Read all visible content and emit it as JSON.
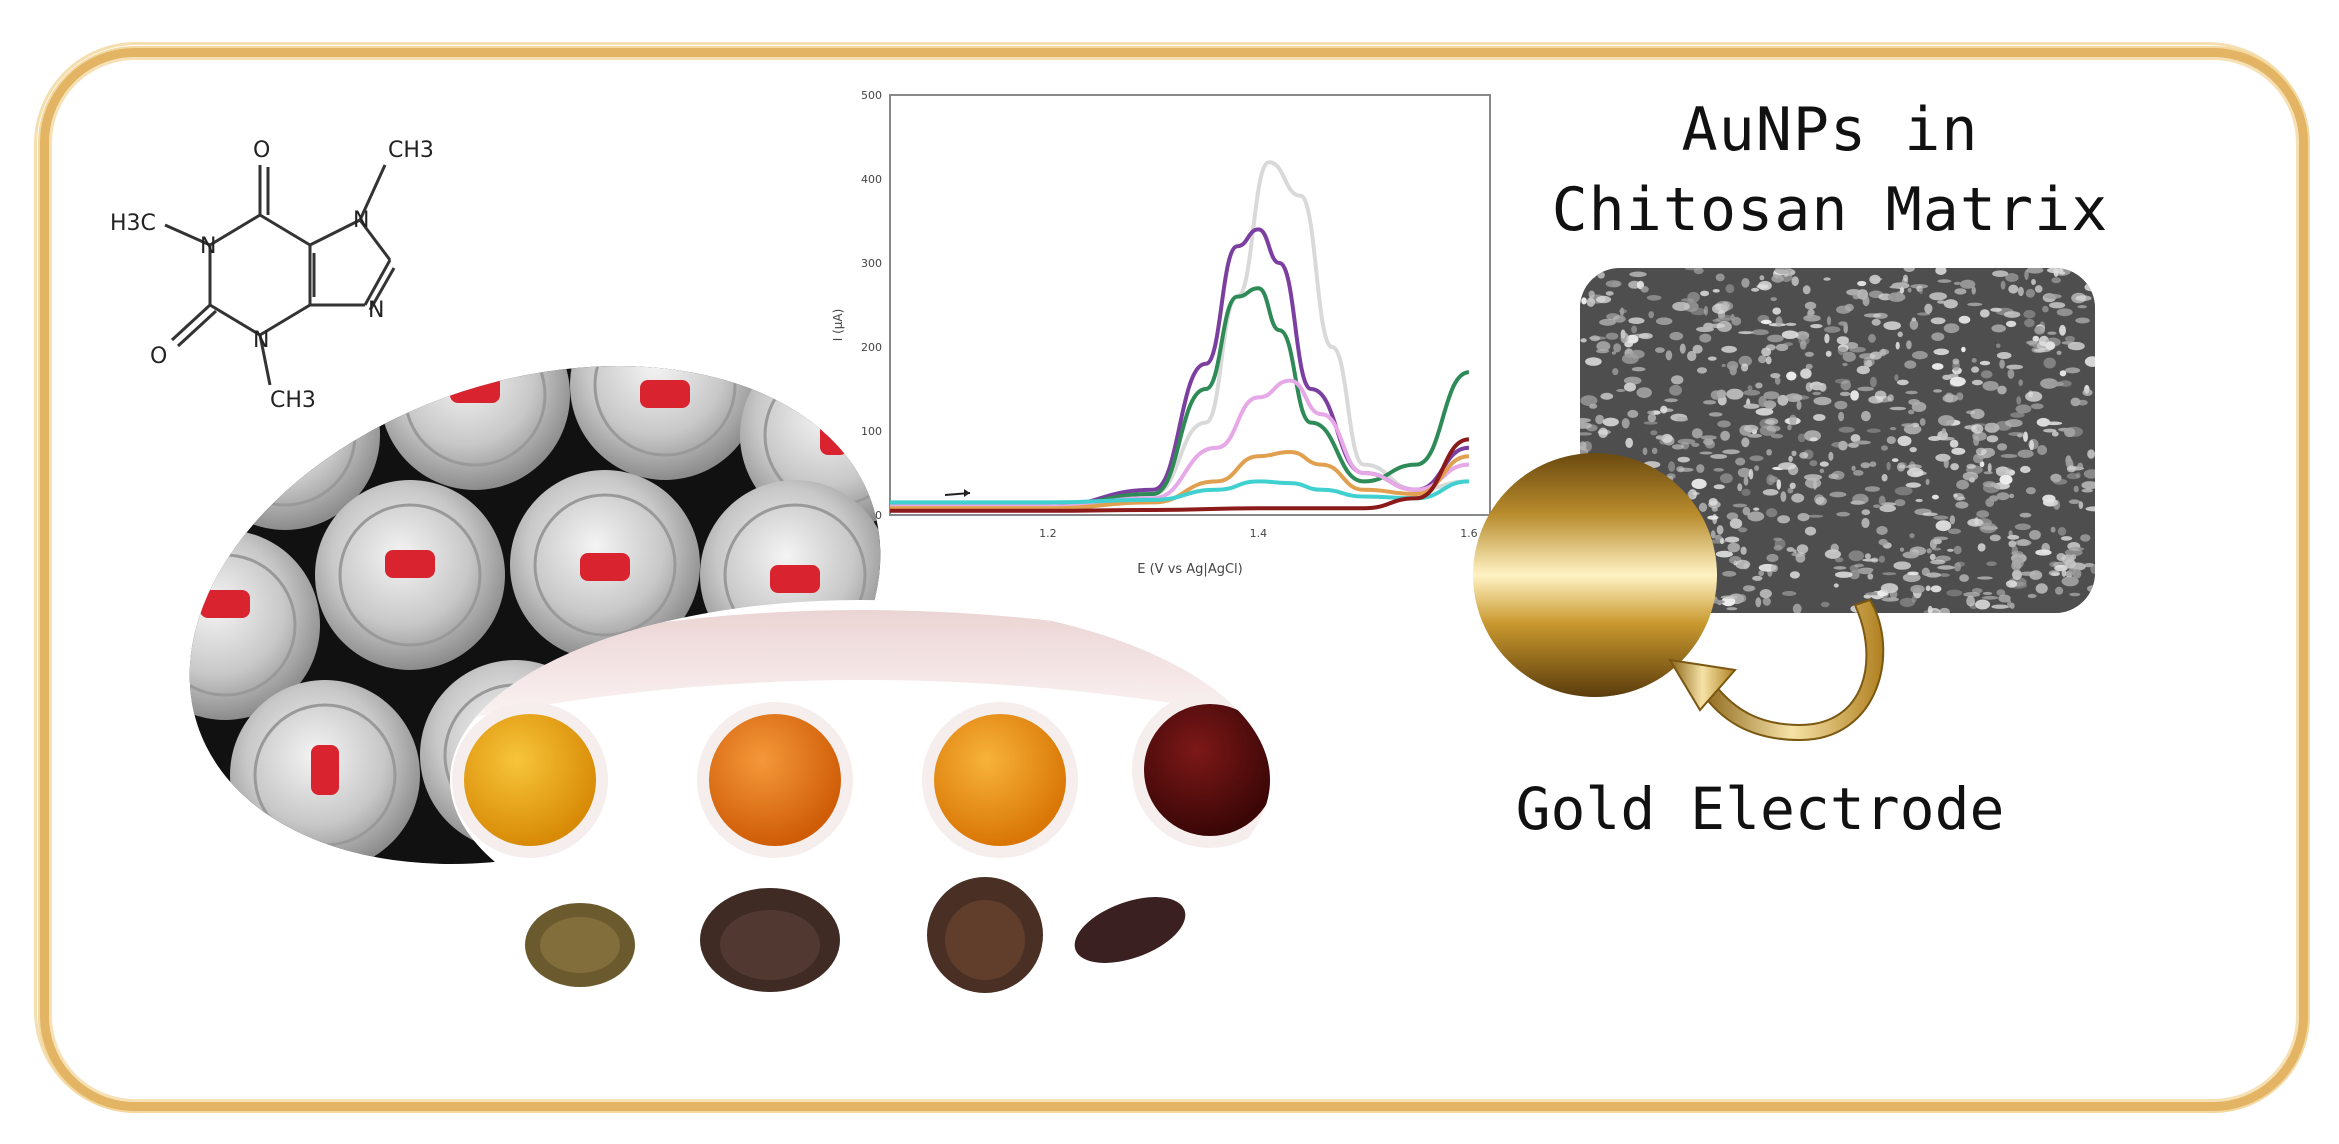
{
  "molecule": {
    "name": "caffeine",
    "atom_labels": {
      "ch3_top": "CH3",
      "h3c_left": "H3C",
      "ch3_bottom": "CH3",
      "o_top": "O",
      "o_bottom": "O",
      "n1": "N",
      "n3": "N",
      "n7": "N",
      "n9": "N"
    }
  },
  "title": {
    "line1": "AuNPs in",
    "line2": "Chitosan Matrix"
  },
  "caption": "Gold Electrode",
  "colors": {
    "frame": "#e2b463",
    "gold_light": "#f6e2a6",
    "gold_dark": "#8a6418",
    "can_red": "#d9232e",
    "tea1": "#e8a20f",
    "tea2": "#e27a12",
    "tea3": "#ee9412",
    "tea4": "#5a0f0f"
  },
  "chart_data": {
    "type": "line",
    "xlabel": "E (V vs Ag|AgCl)",
    "ylabel": "I (µA)",
    "xlim": [
      1.05,
      1.62
    ],
    "ylim": [
      0,
      500
    ],
    "x_ticks": [
      "1.2",
      "1.4",
      "1.6"
    ],
    "y_ticks": [
      "0",
      "100",
      "200",
      "300",
      "400",
      "500"
    ],
    "series": [
      {
        "color": "#d9d9d9",
        "x": [
          1.05,
          1.2,
          1.3,
          1.35,
          1.38,
          1.41,
          1.44,
          1.47,
          1.5,
          1.55,
          1.6
        ],
        "values": [
          12,
          12,
          25,
          110,
          260,
          420,
          380,
          200,
          60,
          30,
          40
        ]
      },
      {
        "color": "#7b3fa0",
        "x": [
          1.05,
          1.2,
          1.3,
          1.35,
          1.38,
          1.4,
          1.42,
          1.45,
          1.5,
          1.55,
          1.6
        ],
        "values": [
          10,
          10,
          30,
          180,
          320,
          340,
          300,
          150,
          50,
          30,
          80
        ]
      },
      {
        "color": "#2e8b57",
        "x": [
          1.05,
          1.2,
          1.3,
          1.35,
          1.38,
          1.4,
          1.42,
          1.45,
          1.5,
          1.55,
          1.6
        ],
        "values": [
          10,
          10,
          25,
          150,
          260,
          270,
          220,
          110,
          40,
          60,
          170
        ]
      },
      {
        "color": "#e6a8e6",
        "x": [
          1.05,
          1.2,
          1.3,
          1.36,
          1.4,
          1.43,
          1.46,
          1.5,
          1.55,
          1.6
        ],
        "values": [
          10,
          10,
          20,
          80,
          140,
          160,
          120,
          50,
          30,
          60
        ]
      },
      {
        "color": "#e0a050",
        "x": [
          1.05,
          1.2,
          1.3,
          1.36,
          1.4,
          1.43,
          1.46,
          1.5,
          1.55,
          1.6
        ],
        "values": [
          8,
          8,
          15,
          40,
          70,
          75,
          60,
          30,
          25,
          70
        ]
      },
      {
        "color": "#40d0d0",
        "x": [
          1.05,
          1.2,
          1.3,
          1.36,
          1.4,
          1.43,
          1.46,
          1.5,
          1.55,
          1.6
        ],
        "values": [
          15,
          15,
          18,
          30,
          40,
          38,
          30,
          22,
          20,
          40
        ]
      },
      {
        "color": "#8b1a1a",
        "x": [
          1.05,
          1.2,
          1.3,
          1.4,
          1.5,
          1.55,
          1.6
        ],
        "values": [
          5,
          5,
          6,
          8,
          8,
          20,
          90
        ]
      }
    ]
  }
}
